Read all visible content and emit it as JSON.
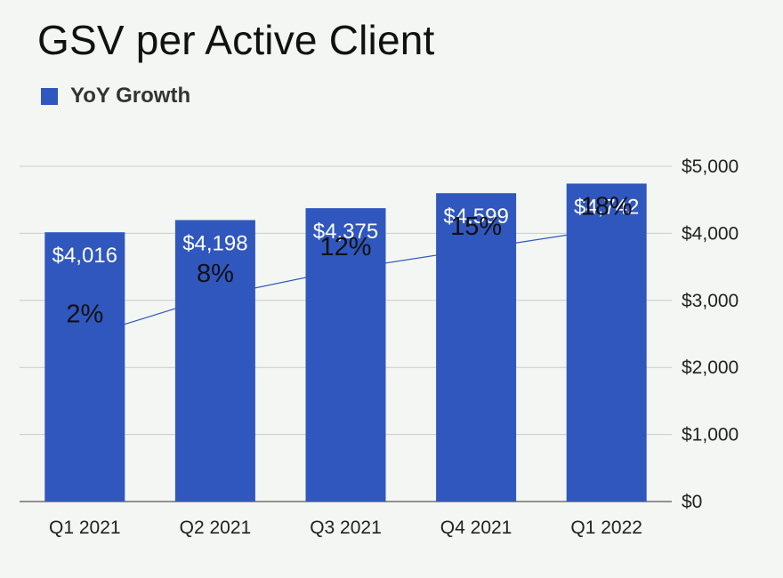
{
  "chart_data": {
    "type": "bar",
    "title": "GSV per Active Client",
    "categories": [
      "Q1 2021",
      "Q2 2021",
      "Q3 2021",
      "Q4 2021",
      "Q1 2022"
    ],
    "series": [
      {
        "type": "bar",
        "values": [
          4016,
          4198,
          4375,
          4599,
          4742
        ],
        "value_labels": [
          "$4,016",
          "$4,198",
          "$4,375",
          "$4,599",
          "$4,742"
        ],
        "color": "#3057be"
      },
      {
        "name": "YoY Growth",
        "type": "line",
        "values": [
          2,
          8,
          12,
          15,
          18
        ],
        "value_labels": [
          "2%",
          "8%",
          "12%",
          "15%",
          "18%"
        ],
        "color": "#3057be"
      }
    ],
    "y_axis": {
      "side": "right",
      "ylim": [
        0,
        5000
      ],
      "ticks": [
        0,
        1000,
        2000,
        3000,
        4000,
        5000
      ],
      "tick_labels": [
        "$0",
        "$1,000",
        "$2,000",
        "$3,000",
        "$4,000",
        "$5,000"
      ]
    },
    "y2_axis": {
      "ylim": [
        -22.5,
        27.3
      ],
      "visible": false
    },
    "grid": true,
    "legend": "top-left",
    "colors": {
      "bar": "#3057be",
      "line": "#3057be",
      "grid": "#c9ccc9",
      "background": "#f3f6f2"
    }
  }
}
